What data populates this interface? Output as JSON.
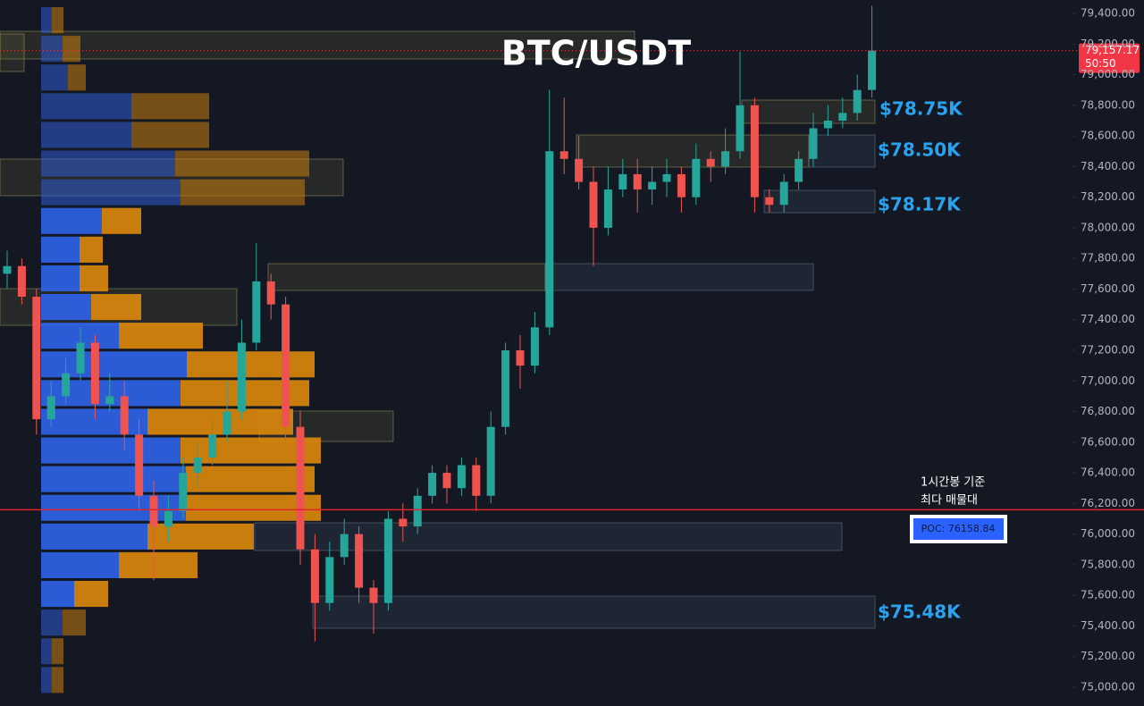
{
  "chart_data": {
    "type": "candlestick",
    "title": "BTC/USDT",
    "open": [
      77700,
      77750,
      77550,
      76750,
      76900,
      77050,
      77250,
      76850,
      76900,
      76650,
      76250,
      76050,
      76150,
      76400,
      76500,
      76650,
      76800,
      77250,
      77650,
      77500,
      76700,
      75900,
      75550,
      75850,
      76000,
      75650,
      75550,
      76100,
      76050,
      76250,
      76400,
      76300,
      76450,
      76250,
      76700,
      77200,
      77100,
      77350,
      78500,
      78450,
      78300,
      78000,
      78250,
      78350,
      78250,
      78300,
      78350,
      78200,
      78450,
      78400,
      78500,
      78800,
      78200,
      78150,
      78300,
      78450,
      78650,
      78700,
      78750,
      78900
    ],
    "high": [
      77850,
      77800,
      77600,
      77000,
      77150,
      77350,
      77300,
      77050,
      77000,
      76750,
      76350,
      76250,
      76500,
      76600,
      76750,
      77000,
      77400,
      77900,
      77700,
      77550,
      76800,
      76000,
      75950,
      76100,
      76050,
      75700,
      76150,
      76200,
      76300,
      76450,
      76450,
      76500,
      76500,
      76800,
      77250,
      77300,
      77450,
      78900,
      78850,
      78600,
      78400,
      78400,
      78450,
      78450,
      78400,
      78450,
      78400,
      78550,
      78500,
      78650,
      79150,
      78850,
      78250,
      78350,
      78500,
      78750,
      78800,
      78850,
      79000,
      79450
    ],
    "low": [
      77600,
      77500,
      76650,
      76700,
      76850,
      77000,
      76750,
      76800,
      76550,
      76150,
      75700,
      75950,
      76100,
      76300,
      76450,
      76600,
      76750,
      77200,
      77400,
      76600,
      75800,
      75300,
      75500,
      75800,
      75550,
      75350,
      75500,
      75950,
      76000,
      76200,
      76200,
      76250,
      76150,
      76200,
      76650,
      76950,
      77050,
      77300,
      78350,
      78250,
      77750,
      77950,
      78200,
      78100,
      78150,
      78200,
      78100,
      78150,
      78300,
      78350,
      78450,
      78100,
      78100,
      78100,
      78250,
      78400,
      78600,
      78650,
      78700,
      78850
    ],
    "close": [
      77750,
      77550,
      76750,
      76900,
      77050,
      77250,
      76850,
      76900,
      76650,
      76250,
      76050,
      76150,
      76400,
      76500,
      76650,
      76800,
      77250,
      77650,
      77500,
      76700,
      75900,
      75550,
      75850,
      76000,
      75650,
      75550,
      76100,
      76050,
      76250,
      76400,
      76300,
      76450,
      76250,
      76700,
      77200,
      77100,
      77350,
      78500,
      78450,
      78300,
      78000,
      78250,
      78350,
      78250,
      78300,
      78350,
      78200,
      78450,
      78400,
      78500,
      78800,
      78200,
      78150,
      78300,
      78450,
      78650,
      78700,
      78750,
      78900,
      79157.17
    ],
    "up_color": "#26a69a",
    "down_color": "#ef5350",
    "ylim": [
      75000,
      79400
    ],
    "yticks": [
      {
        "value": 75000,
        "label": "75,000.00"
      },
      {
        "value": 75200,
        "label": "75,200.00"
      },
      {
        "value": 75400,
        "label": "75,400.00"
      },
      {
        "value": 75600,
        "label": "75,600.00"
      },
      {
        "value": 75800,
        "label": "75,800.00"
      },
      {
        "value": 76000,
        "label": "76,000.00"
      },
      {
        "value": 76200,
        "label": "76,200.00"
      },
      {
        "value": 76400,
        "label": "76,400.00"
      },
      {
        "value": 76600,
        "label": "76,600.00"
      },
      {
        "value": 76800,
        "label": "76,800.00"
      },
      {
        "value": 77000,
        "label": "77,000.00"
      },
      {
        "value": 77200,
        "label": "77,200.00"
      },
      {
        "value": 77400,
        "label": "77,400.00"
      },
      {
        "value": 77600,
        "label": "77,600.00"
      },
      {
        "value": 77800,
        "label": "77,800.00"
      },
      {
        "value": 78000,
        "label": "78,000.00"
      },
      {
        "value": 78200,
        "label": "78,200.00"
      },
      {
        "value": 78400,
        "label": "78,400.00"
      },
      {
        "value": 78600,
        "label": "78,600.00"
      },
      {
        "value": 78800,
        "label": "78,800.00"
      },
      {
        "value": 79000,
        "label": "79,000.00"
      },
      {
        "value": 79200,
        "label": "79,200.00"
      },
      {
        "value": 79400,
        "label": "79,400.00"
      }
    ],
    "last_price": {
      "value": 79157.17,
      "label": "79,157.17",
      "countdown": "50:50",
      "color": "#f23645"
    },
    "profile": {
      "buy": [
        12,
        24,
        30,
        101,
        101,
        150,
        156,
        68,
        43,
        43,
        56,
        87,
        163,
        156,
        119,
        156,
        162,
        162,
        119,
        87,
        37,
        24,
        12,
        12
      ],
      "sell": [
        13,
        20,
        20,
        87,
        87,
        150,
        139,
        44,
        26,
        32,
        56,
        94,
        143,
        144,
        163,
        157,
        144,
        151,
        119,
        88,
        38,
        26,
        13,
        13
      ],
      "buy_color": "#2f62e6",
      "sell_color": "#d9870c"
    },
    "poc": {
      "value": 76158.84,
      "label": "POC: 76158.84",
      "color": "#e0242a"
    },
    "annotations": [
      "$78.75K",
      "$78.50K",
      "$78.17K",
      "$75.48K"
    ],
    "notes": [
      "1시간봉 기준",
      "최다 매물대"
    ]
  }
}
